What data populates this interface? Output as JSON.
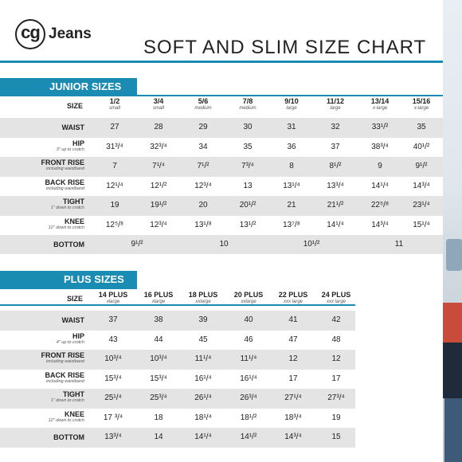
{
  "brand": {
    "mark": "cg",
    "word": "Jeans"
  },
  "title": "SOFT AND SLIM SIZE CHART",
  "junior": {
    "heading": "JUNIOR SIZES",
    "size_label": "SIZE",
    "columns": [
      {
        "size": "1/2",
        "sub": "small"
      },
      {
        "size": "3/4",
        "sub": "small"
      },
      {
        "size": "5/6",
        "sub": "medium"
      },
      {
        "size": "7/8",
        "sub": "medium"
      },
      {
        "size": "9/10",
        "sub": "large"
      },
      {
        "size": "11/12",
        "sub": "large"
      },
      {
        "size": "13/14",
        "sub": "x-large"
      },
      {
        "size": "15/16",
        "sub": "x-large"
      }
    ],
    "rows": [
      {
        "label": "WAIST",
        "note": "",
        "values": [
          "27",
          "28",
          "29",
          "30",
          "31",
          "32",
          "33¹/²",
          "35"
        ]
      },
      {
        "label": "HIP",
        "note": "3\" up to crotch",
        "values": [
          "31³/⁴",
          "32³/⁴",
          "34",
          "35",
          "36",
          "37",
          "38³/⁴",
          "40¹/²"
        ]
      },
      {
        "label": "FRONT RISE",
        "note": "including waistband",
        "values": [
          "7",
          "7¹/⁴",
          "7¹/²",
          "7³/⁴",
          "8",
          "8¹/²",
          "9",
          "9¹/²"
        ]
      },
      {
        "label": "BACK RISE",
        "note": "including waistband",
        "values": [
          "12¹/⁴",
          "12¹/²",
          "12³/⁴",
          "13",
          "13¹/⁴",
          "13³/⁴",
          "14¹/⁴",
          "14³/⁴"
        ]
      },
      {
        "label": "TIGHT",
        "note": "1\" down to crotch",
        "values": [
          "19",
          "19¹/²",
          "20",
          "20¹/²",
          "21",
          "21¹/²",
          "22⁵/⁸",
          "23¹/⁴"
        ]
      },
      {
        "label": "KNEE",
        "note": "12\" down to crotch",
        "values": [
          "12⁵/⁸",
          "12³/⁴",
          "13¹/⁸",
          "13¹/²",
          "13⁷/⁸",
          "14¹/⁴",
          "14³/⁴",
          "15¹/⁴"
        ]
      }
    ],
    "bottom": {
      "label": "BOTTOM",
      "values": [
        "9¹/²",
        "10",
        "10¹/²",
        "11"
      ]
    }
  },
  "plus": {
    "heading": "PLUS SIZES",
    "size_label": "SIZE",
    "columns": [
      {
        "size": "14 PLUS",
        "sub": "xlarge"
      },
      {
        "size": "16 PLUS",
        "sub": "xlarge"
      },
      {
        "size": "18 PLUS",
        "sub": "xxlarge"
      },
      {
        "size": "20 PLUS",
        "sub": "xxlarge"
      },
      {
        "size": "22 PLUS",
        "sub": "xxx large"
      },
      {
        "size": "24 PLUS",
        "sub": "xxx large"
      }
    ],
    "rows": [
      {
        "label": "WAIST",
        "note": "",
        "values": [
          "37",
          "38",
          "39",
          "40",
          "41",
          "42"
        ]
      },
      {
        "label": "HIP",
        "note": "4\" up to crotch",
        "values": [
          "43",
          "44",
          "45",
          "46",
          "47",
          "48"
        ]
      },
      {
        "label": "FRONT RISE",
        "note": "including waistband",
        "values": [
          "10³/⁴",
          "10³/⁴",
          "11¹/⁴",
          "11¹/⁴",
          "12",
          "12"
        ]
      },
      {
        "label": "BACK RISE",
        "note": "including waistband",
        "values": [
          "15³/⁴",
          "15³/⁴",
          "16¹/⁴",
          "16¹/⁴",
          "17",
          "17"
        ]
      },
      {
        "label": "TIGHT",
        "note": "1\" down to crotch",
        "values": [
          "25¹/⁴",
          "25³/⁴",
          "26¹/⁴",
          "26³/⁴",
          "27¹/⁴",
          "27³/⁴"
        ]
      },
      {
        "label": "KNEE",
        "note": "12\" down to crotch",
        "values": [
          "17 ³/⁴",
          "18",
          "18¹/⁴",
          "18¹/²",
          "18³/⁴",
          "19"
        ]
      },
      {
        "label": "BOTTOM",
        "note": "",
        "values": [
          "13³/⁴",
          "14",
          "14¹/⁴",
          "14¹/²",
          "14³/⁴",
          "15"
        ]
      }
    ]
  },
  "colors": {
    "accent": "#1a8bb3",
    "shade": "#e4e4e4"
  }
}
